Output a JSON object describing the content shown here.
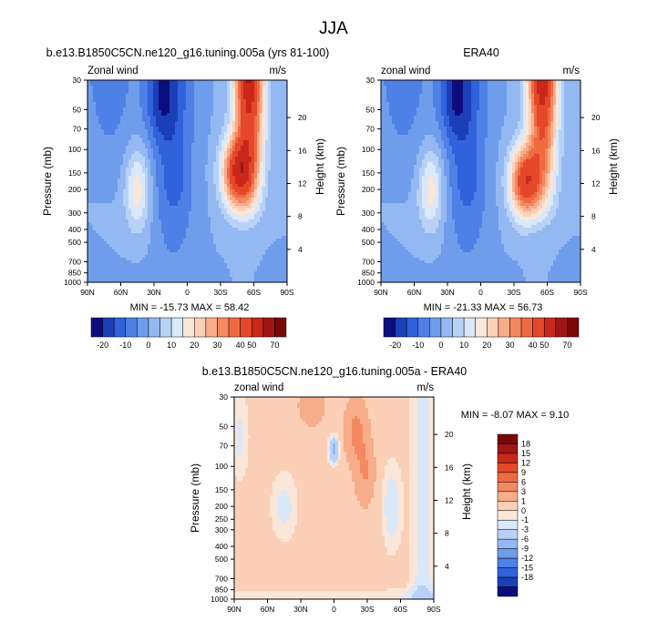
{
  "chart_data": {
    "type": "heatmap",
    "title": "JJA",
    "panels": [
      {
        "id": "model",
        "title": "b.e13.B1850C5CN.ne120_g16.tuning.005a (yrs 81-100)",
        "left_label": "Zonal wind",
        "right_label": "m/s",
        "ylabel": "Pressure (mb)",
        "ylabel_right": "Height (km)",
        "stats": "MIN = -15.73   MAX = 58.42",
        "min": -15.73,
        "max": 58.42,
        "xlim": [
          90,
          -90
        ],
        "ylim": [
          1000,
          30
        ],
        "hotspot_lat": -45,
        "hotspot_p": 150,
        "wz": 62
      },
      {
        "id": "obs",
        "title": "ERA40",
        "left_label": "zonal wind",
        "right_label": "m/s",
        "ylabel": "Pressure (mb)",
        "ylabel_right": "Height (km)",
        "stats": "MIN = -21.33   MAX = 56.73",
        "min": -21.33,
        "max": 56.73,
        "xlim": [
          90,
          -90
        ],
        "ylim": [
          1000,
          30
        ],
        "hotspot_lat": -40,
        "hotspot_p": 175,
        "wz": 60
      },
      {
        "id": "diff",
        "title": "b.e13.B1850C5CN.ne120_g16.tuning.005a - ERA40",
        "left_label": "zonal wind",
        "right_label": "m/s",
        "ylabel": "Pressure (mb)",
        "ylabel_right": "Height (km)",
        "stats": "MIN =  -8.07  MAX =   9.10",
        "min": -8.07,
        "max": 9.1,
        "xlim": [
          90,
          -90
        ],
        "ylim": [
          1000,
          30
        ]
      }
    ],
    "pressure_ticks": [
      "30",
      "50",
      "70",
      "100",
      "150",
      "200",
      "250",
      "300",
      "400",
      "500",
      "700",
      "850",
      "1000"
    ],
    "pressure_ticks_top": [
      "30",
      "50",
      "70",
      "100",
      "150",
      "200",
      "300",
      "400",
      "500",
      "700",
      "850",
      "1000"
    ],
    "height_ticks": [
      "20",
      "16",
      "12",
      "8",
      "4"
    ],
    "lat_ticks": [
      "90N",
      "60N",
      "30N",
      "0",
      "30S",
      "60S",
      "90S"
    ],
    "field_colorbar": {
      "labels": [
        "-20",
        "-10",
        "0",
        "10",
        "20",
        "30",
        "40",
        "50",
        "70"
      ],
      "colors": [
        "#0c0c7e",
        "#1b3fb8",
        "#2f62db",
        "#4f80e5",
        "#6f9dec",
        "#94b9f2",
        "#b8d2f6",
        "#d9e8fa",
        "#fbe6da",
        "#fbd0b6",
        "#f8ad8a",
        "#f48860",
        "#ef6a3f",
        "#e5472a",
        "#c9271a",
        "#a01515",
        "#7a0707"
      ]
    },
    "diff_colorbar": {
      "labels": [
        "18",
        "15",
        "12",
        "9",
        "6",
        "3",
        "1",
        "0",
        "-1",
        "-3",
        "-6",
        "-9",
        "-12",
        "-15",
        "-18"
      ],
      "colors": [
        "#7a0707",
        "#a01515",
        "#c9271a",
        "#e5472a",
        "#ef6a3f",
        "#f48860",
        "#f8ad8a",
        "#fbd0b6",
        "#fbe6da",
        "#d9e8fa",
        "#b8d2f6",
        "#94b9f2",
        "#6f9dec",
        "#4f80e5",
        "#2f62db",
        "#1b3fb8",
        "#0c0c7e"
      ]
    }
  }
}
